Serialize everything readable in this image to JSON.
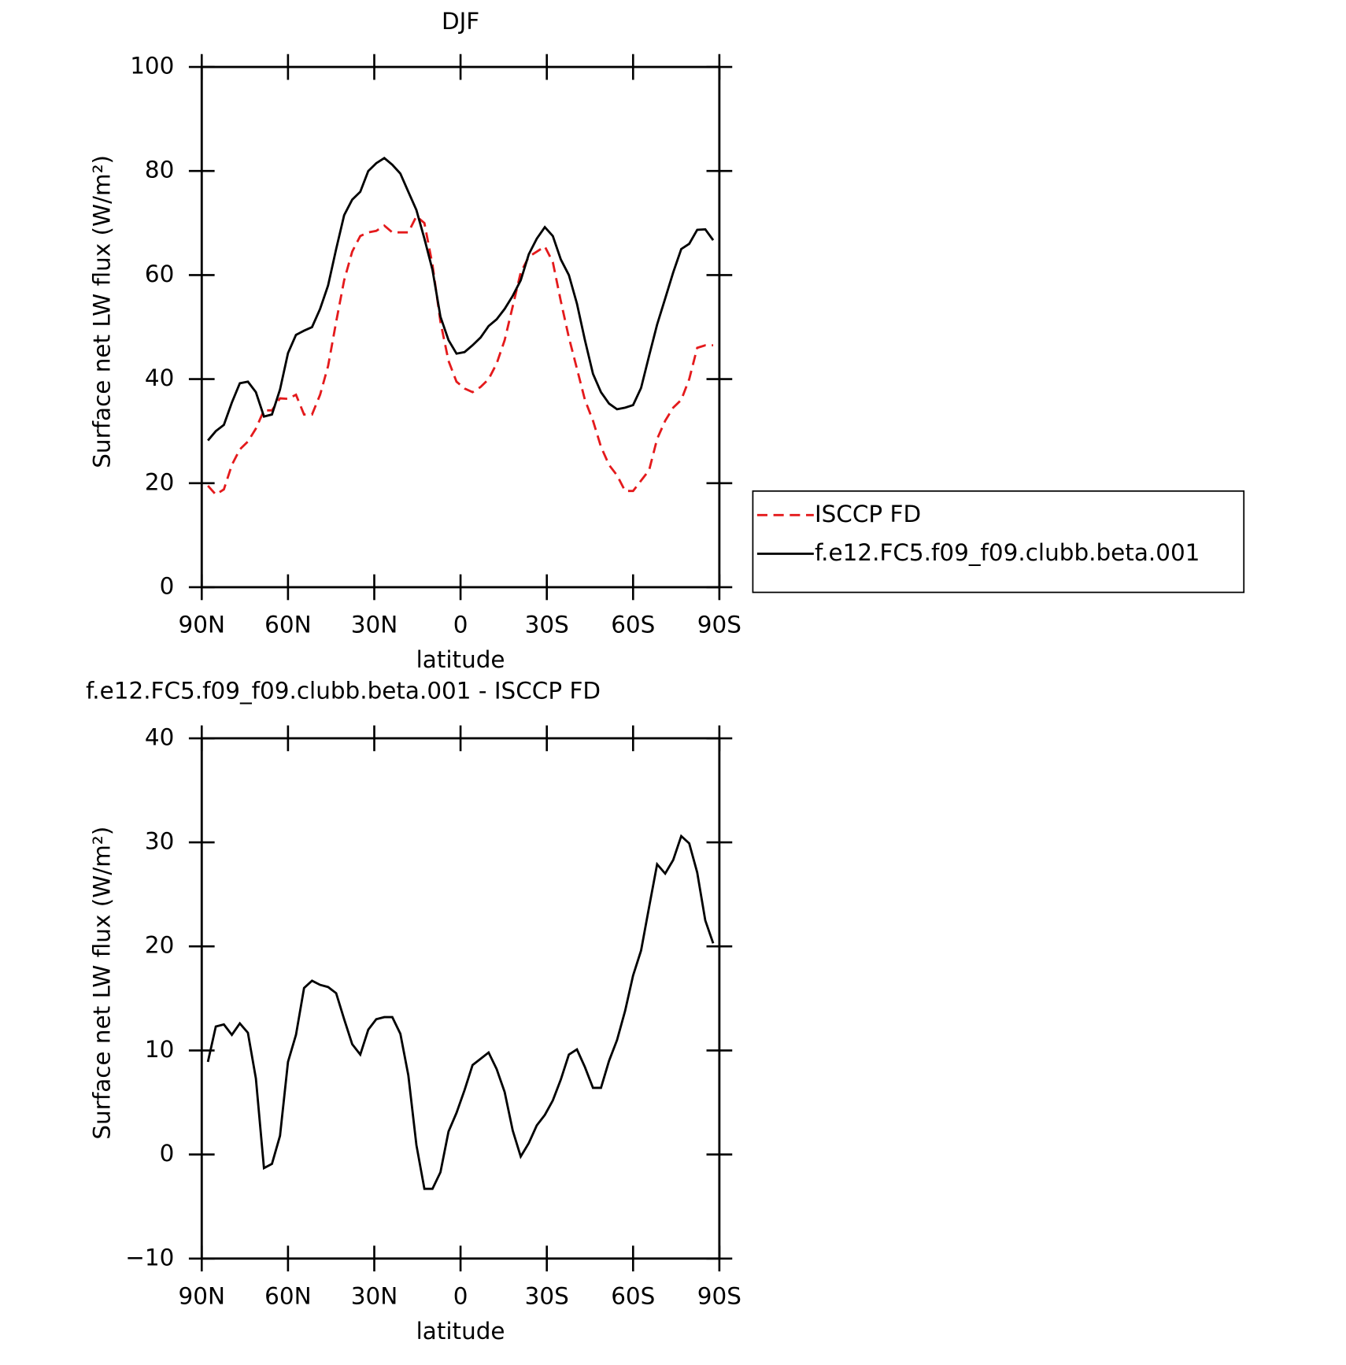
{
  "chart_data": [
    {
      "type": "line",
      "title": "DJF",
      "x_label": "latitude",
      "y_label": "Surface net LW flux (W/m²)",
      "x": [
        87.86,
        85.1,
        82.31,
        79.53,
        76.74,
        73.95,
        71.16,
        68.37,
        65.58,
        62.79,
        60.0,
        57.21,
        54.42,
        51.63,
        48.84,
        46.05,
        43.26,
        40.47,
        37.67,
        34.88,
        32.09,
        29.3,
        26.51,
        23.72,
        20.93,
        18.14,
        15.35,
        12.56,
        9.77,
        6.98,
        4.19,
        1.4,
        -1.4,
        -4.19,
        -6.98,
        -9.77,
        -12.56,
        -15.35,
        -18.14,
        -20.93,
        -23.72,
        -26.51,
        -29.3,
        -32.09,
        -34.88,
        -37.67,
        -40.47,
        -43.26,
        -46.05,
        -48.84,
        -51.63,
        -54.42,
        -57.21,
        -60.0,
        -62.79,
        -65.58,
        -68.37,
        -71.16,
        -73.95,
        -76.74,
        -79.53,
        -82.31,
        -85.1,
        -87.86
      ],
      "series": [
        {
          "name": "ISCCP FD",
          "color": "#e41a1c",
          "line_style": "dashed",
          "values": [
            19.5,
            17.8,
            18.8,
            23.5,
            26.5,
            28,
            30.5,
            34,
            34,
            36.3,
            36.2,
            37,
            33.2,
            33.2,
            37,
            42.5,
            51,
            59,
            64.5,
            67.5,
            68.2,
            68.5,
            69.5,
            68.2,
            68.2,
            68.2,
            71.3,
            70,
            62,
            51,
            43.5,
            39.5,
            38.2,
            37.5,
            38.5,
            40,
            43,
            47.5,
            54,
            60.5,
            63.5,
            64.5,
            65.5,
            62.5,
            55,
            48,
            42,
            36,
            32,
            27,
            23.5,
            21.5,
            18.5,
            18.5,
            20.5,
            22.5,
            28.5,
            32,
            34.5,
            36,
            40,
            46,
            46.5,
            46.5
          ]
        },
        {
          "name": "f.e12.FC5.f09_f09.clubb.beta.001",
          "color": "#000000",
          "line_style": "solid",
          "values": [
            28.2,
            30,
            31.2,
            35.5,
            39.2,
            39.5,
            37.5,
            32.8,
            33.2,
            38,
            45,
            48.5,
            49.3,
            50,
            53.5,
            58,
            65,
            71.5,
            74.5,
            76,
            80,
            81.5,
            82.5,
            81.2,
            79.5,
            76,
            72.5,
            67,
            61,
            52,
            47.5,
            44.9,
            45.2,
            46.5,
            48,
            50.2,
            51.5,
            53.5,
            56,
            59,
            64,
            67,
            69.2,
            67.5,
            63,
            60,
            54.5,
            47.5,
            41,
            37.5,
            35.3,
            34.2,
            34.5,
            35,
            38.3,
            44.5,
            50.5,
            55.5,
            60.5,
            65,
            66,
            68.7,
            68.8,
            66.7
          ]
        }
      ],
      "xlim": [
        90,
        -90
      ],
      "xticks": [
        {
          "value": 90,
          "label": "90N"
        },
        {
          "value": 60,
          "label": "60N"
        },
        {
          "value": 30,
          "label": "30N"
        },
        0,
        {
          "value": -30,
          "label": "30S"
        },
        {
          "value": -60,
          "label": "60S"
        },
        {
          "value": -90,
          "label": "90S"
        }
      ],
      "ylim": [
        0,
        100
      ],
      "yticks": [
        0,
        20,
        40,
        60,
        80,
        100
      ],
      "legend": "right"
    },
    {
      "type": "line",
      "title": "f.e12.FC5.f09_f09.clubb.beta.001 - ISCCP FD",
      "x_label": "latitude",
      "y_label": "Surface net LW flux (W/m²)",
      "x": [
        87.86,
        85.1,
        82.31,
        79.53,
        76.74,
        73.95,
        71.16,
        68.37,
        65.58,
        62.79,
        60.0,
        57.21,
        54.42,
        51.63,
        48.84,
        46.05,
        43.26,
        40.47,
        37.67,
        34.88,
        32.09,
        29.3,
        26.51,
        23.72,
        20.93,
        18.14,
        15.35,
        12.56,
        9.77,
        6.98,
        4.19,
        1.4,
        -1.4,
        -4.19,
        -6.98,
        -9.77,
        -12.56,
        -15.35,
        -18.14,
        -20.93,
        -23.72,
        -26.51,
        -29.3,
        -32.09,
        -34.88,
        -37.67,
        -40.47,
        -43.26,
        -46.05,
        -48.84,
        -51.63,
        -54.42,
        -57.21,
        -60.0,
        -62.79,
        -65.58,
        -68.37,
        -71.16,
        -73.95,
        -76.74,
        -79.53,
        -82.31,
        -85.1,
        -87.86
      ],
      "series": [
        {
          "color": "#000000",
          "line_style": "solid",
          "values": [
            8.9,
            12.3,
            12.5,
            11.5,
            12.6,
            11.7,
            7.3,
            -1.3,
            -0.9,
            1.8,
            8.9,
            11.5,
            16,
            16.7,
            16.3,
            16.1,
            15.5,
            13,
            10.6,
            9.6,
            12,
            13,
            13.2,
            13.2,
            11.6,
            7.6,
            0.9,
            -3.3,
            -3.3,
            -1.7,
            2.2,
            4,
            6.2,
            8.6,
            9.2,
            9.8,
            8.2,
            6,
            2.3,
            -0.2,
            1.1,
            2.8,
            3.8,
            5.2,
            7.2,
            9.6,
            10.1,
            8.4,
            6.4,
            6.4,
            9,
            11,
            13.8,
            17.2,
            19.6,
            23.8,
            27.9,
            27,
            28.3,
            30.6,
            29.9,
            27.1,
            22.5,
            20.3
          ]
        }
      ],
      "xlim": [
        90,
        -90
      ],
      "xticks": [
        {
          "value": 90,
          "label": "90N"
        },
        {
          "value": 60,
          "label": "60N"
        },
        {
          "value": 30,
          "label": "30N"
        },
        0,
        {
          "value": -30,
          "label": "30S"
        },
        {
          "value": -60,
          "label": "60S"
        },
        {
          "value": -90,
          "label": "90S"
        }
      ],
      "ylim": [
        -10,
        40
      ],
      "yticks": [
        {
          "value": -10,
          "label": "−10"
        },
        0,
        10,
        20,
        30,
        40
      ]
    }
  ]
}
